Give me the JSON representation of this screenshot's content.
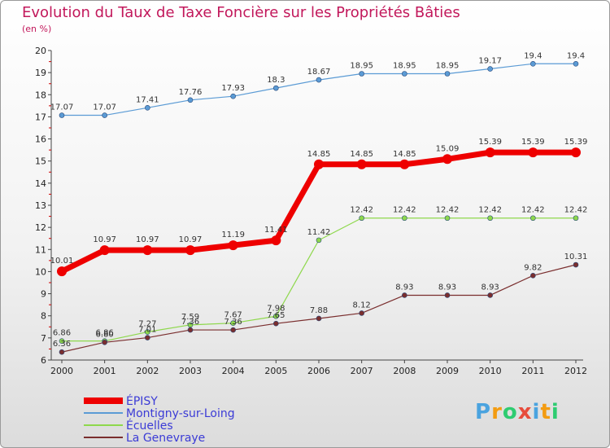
{
  "chart_data": {
    "type": "line",
    "title": "Evolution du Taux de Taxe Foncière sur les Propriétés Bâties",
    "subtitle": "(en %)",
    "xlabel": "",
    "ylabel": "",
    "categories": [
      "2000",
      "2001",
      "2002",
      "2003",
      "2004",
      "2005",
      "2006",
      "2007",
      "2008",
      "2009",
      "2010",
      "2011",
      "2012"
    ],
    "ylim": [
      6,
      20
    ],
    "yticks": [
      6,
      7,
      8,
      9,
      10,
      11,
      12,
      13,
      14,
      15,
      16,
      17,
      18,
      19,
      20
    ],
    "grid": false,
    "legend_position": "bottom-left",
    "series": [
      {
        "name": "Montigny-sur-Loing",
        "color": "#5b9bd5",
        "values": [
          17.07,
          17.07,
          17.41,
          17.76,
          17.93,
          18.3,
          18.67,
          18.95,
          18.95,
          18.95,
          19.17,
          19.4,
          19.4
        ],
        "labels": [
          "17.07",
          "17.07",
          "17.41",
          "17.76",
          "17.93",
          "18.3",
          "18.67",
          "18.95",
          "18.95",
          "18.95",
          "19.17",
          "19.4",
          "19.4"
        ]
      },
      {
        "name": "Écuelles",
        "color": "#8ed84c",
        "values": [
          6.86,
          6.86,
          7.27,
          7.59,
          7.67,
          7.98,
          11.42,
          12.42,
          12.42,
          12.42,
          12.42,
          12.42,
          12.42
        ],
        "labels": [
          "6.86",
          "6.86",
          "7.27",
          "7.59",
          "7.67",
          "7.98",
          "11.42",
          "12.42",
          "12.42",
          "12.42",
          "12.42",
          "12.42",
          "12.42"
        ]
      },
      {
        "name": "La Genevraye",
        "color": "#7a2e2e",
        "values": [
          6.36,
          6.8,
          7.01,
          7.36,
          7.36,
          7.65,
          7.88,
          8.12,
          8.93,
          8.93,
          8.93,
          9.82,
          10.31
        ],
        "labels": [
          "6.36",
          "6.80",
          "7.01",
          "7.36",
          "7.36",
          "7.65",
          "7.88",
          "8.12",
          "8.93",
          "8.93",
          "8.93",
          "9.82",
          "10.31"
        ]
      },
      {
        "name": "ÉPISY",
        "color": "#ee0000",
        "values": [
          10.01,
          10.97,
          10.97,
          10.97,
          11.19,
          11.41,
          14.85,
          14.85,
          14.85,
          15.09,
          15.39,
          15.39,
          15.39
        ],
        "labels": [
          "10.01",
          "10.97",
          "10.97",
          "10.97",
          "11.19",
          "11.41",
          "14.85",
          "14.85",
          "14.85",
          "15.09",
          "15.39",
          "15.39",
          "15.39"
        ]
      }
    ],
    "legend": [
      "ÉPISY",
      "Montigny-sur-Loing",
      "Écuelles",
      "La Genevraye"
    ]
  },
  "logo": {
    "text": "Proxiti",
    "letters": [
      "P",
      "r",
      "o",
      "x",
      "i",
      "t",
      "i"
    ],
    "colors": [
      "#4aa3df",
      "#f39c12",
      "#2ecc71",
      "#e74c3c",
      "#4aa3df",
      "#f39c12",
      "#2ecc71"
    ]
  }
}
